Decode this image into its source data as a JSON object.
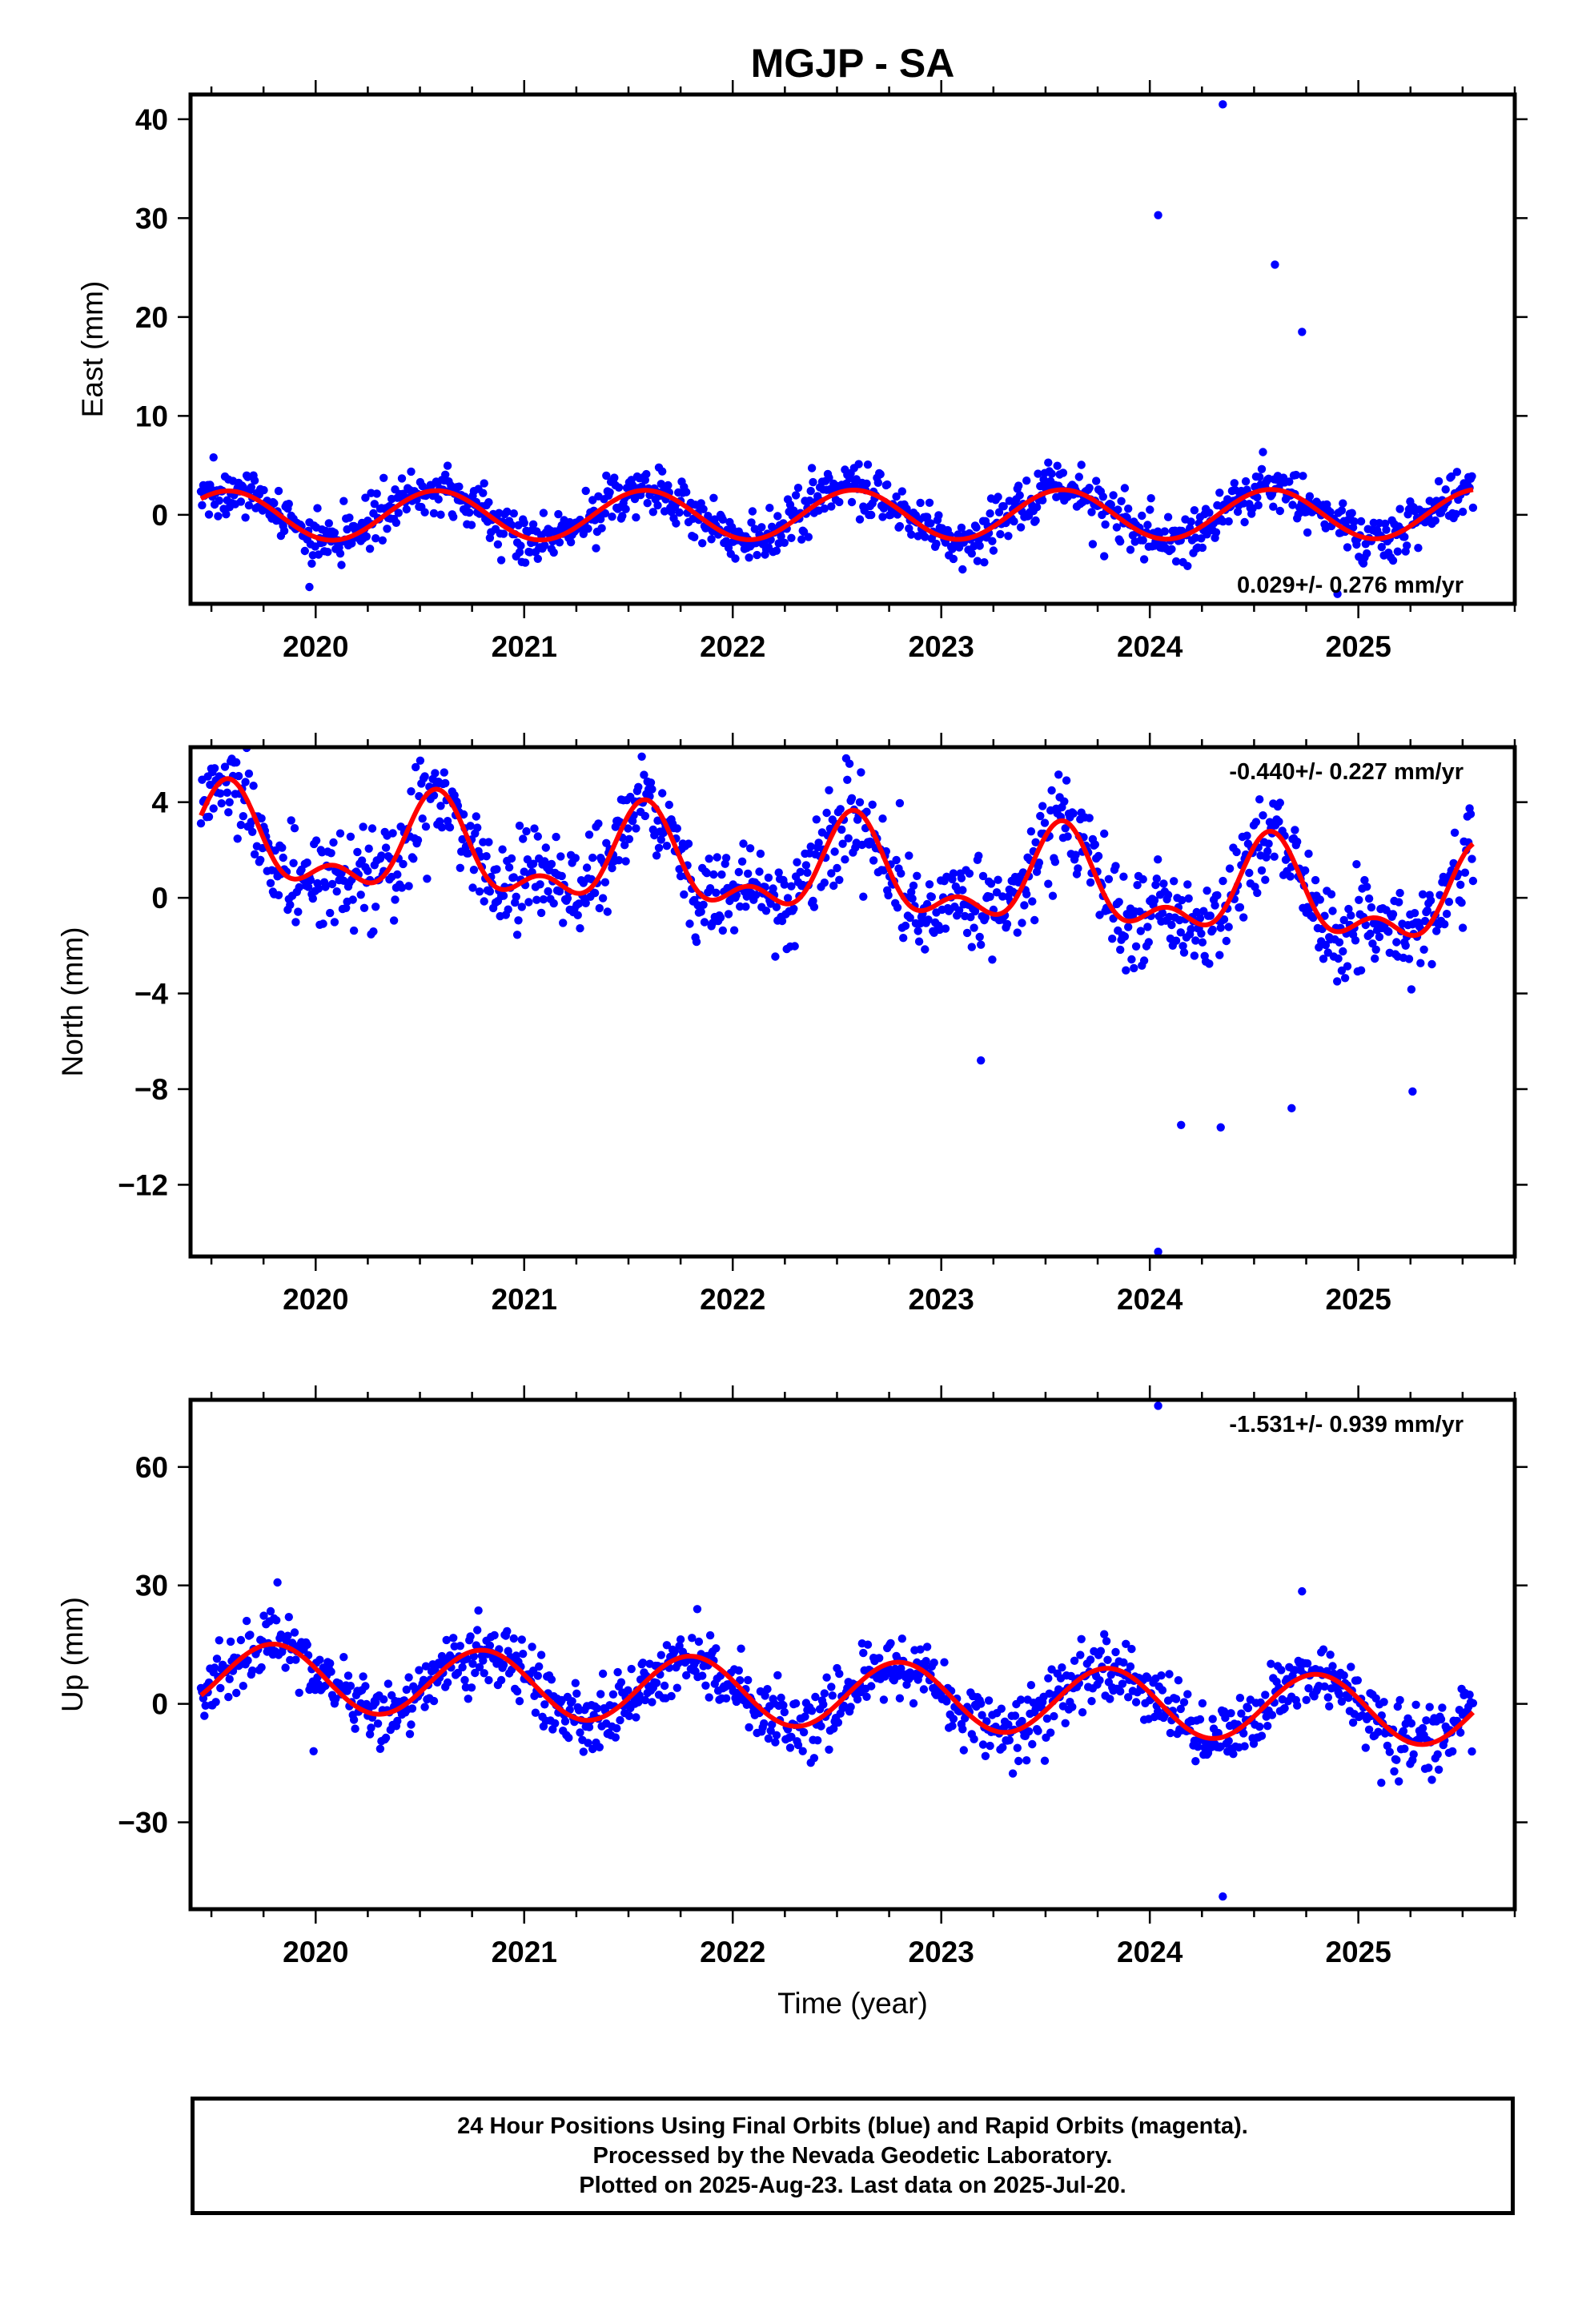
{
  "title": "MGJP - SA",
  "colors": {
    "final_orbits": "#0000ff",
    "rapid_orbits": "#ff00ff",
    "model_fit": "#ff0000",
    "axes": "#000000"
  },
  "chart_data": [
    {
      "type": "scatter",
      "ylabel": "East (mm)",
      "xlabel": "",
      "xlim": [
        2019.4,
        2025.75
      ],
      "ylim": [
        -9,
        42.5
      ],
      "xticks": [
        2020,
        2021,
        2022,
        2023,
        2024,
        2025
      ],
      "yticks": [
        0,
        10,
        20,
        30,
        40
      ],
      "grid": false,
      "rate_label": "0.029+/- 0.276 mm/yr",
      "rate_position": "bottom-right",
      "series": [
        {
          "kind": "points",
          "color": "#0000ff",
          "seasonal_model": {
            "x_start": 2019.45,
            "x_end": 2025.55,
            "offset": 0.0,
            "trend": 0.029,
            "annual_amp": 2.5,
            "annual_peak": 0.58,
            "semiannual_amp": 0.0,
            "semiannual_peak": 0.0,
            "scatter": 1.3,
            "step_days": 2
          },
          "outliers": [
            {
              "x": 2024.35,
              "y": 41.5
            },
            {
              "x": 2024.04,
              "y": 30.3
            },
            {
              "x": 2024.6,
              "y": 25.3
            },
            {
              "x": 2024.73,
              "y": 18.5
            },
            {
              "x": 2019.97,
              "y": -7.3
            },
            {
              "x": 2024.9,
              "y": -8.0
            }
          ]
        },
        {
          "kind": "line",
          "color": "#ff0000",
          "seasonal_model": {
            "x_start": 2019.45,
            "x_end": 2025.55,
            "offset": 0.0,
            "trend": 0.029,
            "annual_amp": 2.5,
            "annual_peak": 0.58,
            "semiannual_amp": 0.0,
            "semiannual_peak": 0.0
          }
        }
      ]
    },
    {
      "type": "scatter",
      "ylabel": "North (mm)",
      "xlabel": "",
      "xlim": [
        2019.4,
        2025.75
      ],
      "ylim": [
        -15,
        6.3
      ],
      "xticks": [
        2020,
        2021,
        2022,
        2023,
        2024,
        2025
      ],
      "yticks": [
        4,
        0,
        -4,
        -8,
        -12
      ],
      "grid": false,
      "rate_label": "-0.440+/- 0.227 mm/yr",
      "rate_position": "top-right",
      "series": [
        {
          "kind": "points",
          "color": "#0000ff",
          "seasonal_model": {
            "x_start": 2019.45,
            "x_end": 2025.55,
            "offset": 1.0,
            "trend": -0.44,
            "annual_amp": 1.7,
            "annual_peak": 0.58,
            "semiannual_amp": 1.0,
            "semiannual_peak": 0.08,
            "scatter": 1.0,
            "step_days": 2
          },
          "outliers": [
            {
              "x": 2024.04,
              "y": -14.8
            },
            {
              "x": 2024.15,
              "y": -9.5
            },
            {
              "x": 2024.34,
              "y": -9.6
            },
            {
              "x": 2024.68,
              "y": -8.8
            },
            {
              "x": 2025.26,
              "y": -8.1
            },
            {
              "x": 2023.19,
              "y": -6.8
            }
          ]
        },
        {
          "kind": "line",
          "color": "#ff0000",
          "seasonal_model": {
            "x_start": 2019.45,
            "x_end": 2025.55,
            "offset": 1.0,
            "trend": -0.44,
            "annual_amp": 1.7,
            "annual_peak": 0.58,
            "semiannual_amp": 1.0,
            "semiannual_peak": 0.08
          }
        }
      ]
    },
    {
      "type": "scatter",
      "ylabel": "Up (mm)",
      "xlabel": "Time (year)",
      "xlim": [
        2019.4,
        2025.75
      ],
      "ylim": [
        -52,
        77
      ],
      "xticks": [
        2020,
        2021,
        2022,
        2023,
        2024,
        2025
      ],
      "yticks": [
        60,
        30,
        0,
        -30
      ],
      "grid": false,
      "rate_label": "-1.531+/- 0.939 mm/yr",
      "rate_position": "top-right",
      "series": [
        {
          "kind": "points",
          "color": "#0000ff",
          "seasonal_model": {
            "x_start": 2019.45,
            "x_end": 2025.55,
            "offset": 2.5,
            "trend": -1.531,
            "annual_amp": 8.5,
            "annual_peak": 0.8,
            "semiannual_amp": 0.0,
            "semiannual_peak": 0.0,
            "scatter": 4.2,
            "step_days": 2
          },
          "outliers": [
            {
              "x": 2024.04,
              "y": 75.5
            },
            {
              "x": 2024.35,
              "y": -48.8
            },
            {
              "x": 2024.73,
              "y": 28.5
            },
            {
              "x": 2021.83,
              "y": 24.0
            },
            {
              "x": 2019.99,
              "y": -12.0
            },
            {
              "x": 2025.11,
              "y": -20.0
            }
          ]
        },
        {
          "kind": "line",
          "color": "#ff0000",
          "seasonal_model": {
            "x_start": 2019.45,
            "x_end": 2025.55,
            "offset": 2.5,
            "trend": -1.531,
            "annual_amp": 8.5,
            "annual_peak": 0.8,
            "semiannual_amp": 0.0,
            "semiannual_peak": 0.0
          }
        }
      ]
    }
  ],
  "caption": {
    "line1": "24 Hour Positions Using Final Orbits (blue) and Rapid Orbits (magenta).",
    "line2": "Processed by the Nevada Geodetic Laboratory.",
    "line3": "Plotted on 2025-Aug-23. Last data on 2025-Jul-20."
  }
}
